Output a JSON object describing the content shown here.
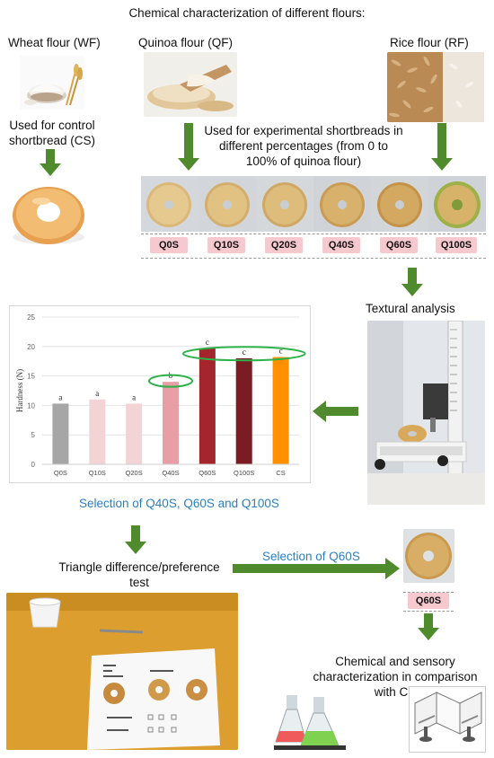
{
  "header": {
    "title": "Chemical characterization of different flours:"
  },
  "flours": {
    "wheat": "Wheat flour (WF)",
    "quinoa": "Quinoa flour (QF)",
    "rice": "Rice flour (RF)"
  },
  "notes": {
    "control_line1": "Used for control",
    "control_line2": "shortbread (CS)",
    "experimental_line1": "Used for experimental shortbreads in",
    "experimental_line2": "different percentages (from 0 to",
    "experimental_line3": "100% of quinoa flour)"
  },
  "samples": [
    "Q0S",
    "Q10S",
    "Q20S",
    "Q40S",
    "Q60S",
    "Q100S"
  ],
  "textural_analysis": "Textural analysis",
  "selection_text": "Selection of Q40S, Q60S and Q100S",
  "triangle_line1": "Triangle difference/preference",
  "triangle_line2": "test",
  "selection_q60s": "Selection of Q60S",
  "q60s_label": "Q60S",
  "final_line1": "Chemical and sensory",
  "final_line2": "characterization in comparison",
  "final_line3": "with CS",
  "chart_data": {
    "type": "bar",
    "categories": [
      "Q0S",
      "Q10S",
      "Q20S",
      "Q40S",
      "Q60S",
      "Q100S",
      "CS"
    ],
    "values": [
      10.3,
      11.0,
      10.3,
      14.0,
      19.7,
      18.0,
      18.2
    ],
    "letters": [
      "a",
      "a",
      "a",
      "b",
      "c",
      "c",
      "c"
    ],
    "colors": [
      "#a6a6a6",
      "#f2d4d7",
      "#f2d4d7",
      "#e79ea4",
      "#a4262c",
      "#7a1c22",
      "#ff9100"
    ],
    "ylabel": "Hardness (N)",
    "ylim": [
      0,
      25
    ],
    "yticks": [
      0,
      5,
      10,
      15,
      20,
      25
    ],
    "highlight_color": "#2db24a",
    "grid": true
  }
}
